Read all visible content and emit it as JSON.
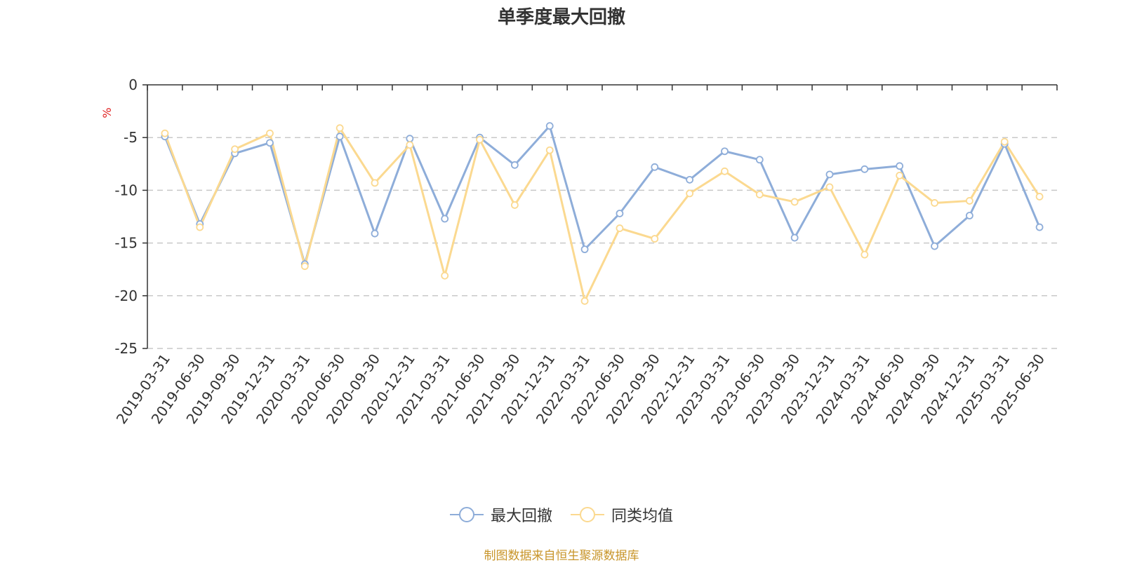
{
  "title": "单季度最大回撤",
  "source": "制图数据来自恒生聚源数据库",
  "colors": {
    "series1": "#8eadd9",
    "series2": "#fbd990",
    "unit": "#e02020",
    "grid": "#c8c8c8",
    "axis": "#333333",
    "source": "#c8952a"
  },
  "chart_data": {
    "type": "line",
    "title": "单季度最大回撤",
    "ylabel": "%",
    "xlabel": "",
    "ylim": [
      -25,
      0
    ],
    "yticks": [
      0,
      -5,
      -10,
      -15,
      -20,
      -25
    ],
    "grid": true,
    "legend_position": "bottom-center",
    "categories": [
      "2019-03-31",
      "2019-06-30",
      "2019-09-30",
      "2019-12-31",
      "2020-03-31",
      "2020-06-30",
      "2020-09-30",
      "2020-12-31",
      "2021-03-31",
      "2021-06-30",
      "2021-09-30",
      "2021-12-31",
      "2022-03-31",
      "2022-06-30",
      "2022-09-30",
      "2022-12-31",
      "2023-03-31",
      "2023-06-30",
      "2023-09-30",
      "2023-12-31",
      "2024-03-31",
      "2024-06-30",
      "2024-09-30",
      "2024-12-31",
      "2025-03-31",
      "2025-06-30"
    ],
    "series": [
      {
        "name": "最大回撤",
        "color": "#8eadd9",
        "values": [
          -4.9,
          -13.2,
          -6.5,
          -5.5,
          -17.0,
          -4.9,
          -14.1,
          -5.1,
          -12.7,
          -5.0,
          -7.6,
          -3.9,
          -15.6,
          -12.2,
          -7.8,
          -9.0,
          -6.3,
          -7.1,
          -14.5,
          -8.5,
          -8.0,
          -7.7,
          -15.3,
          -12.4,
          -5.6,
          -13.5
        ]
      },
      {
        "name": "同类均值",
        "color": "#fbd990",
        "values": [
          -4.6,
          -13.5,
          -6.1,
          -4.6,
          -17.2,
          -4.1,
          -9.3,
          -5.7,
          -18.1,
          -5.2,
          -11.4,
          -6.2,
          -20.5,
          -13.6,
          -14.6,
          -10.3,
          -8.2,
          -10.4,
          -11.1,
          -9.7,
          -16.1,
          -8.6,
          -11.2,
          -11.0,
          -5.4,
          -10.6
        ]
      }
    ]
  }
}
